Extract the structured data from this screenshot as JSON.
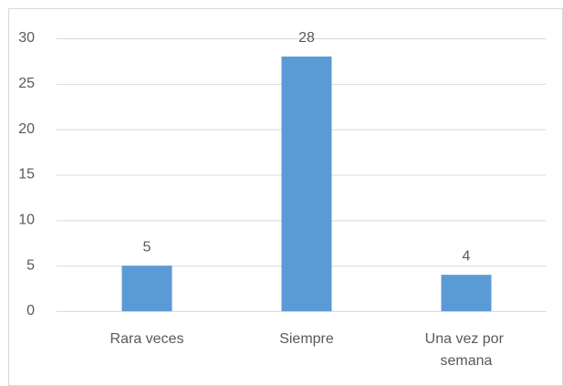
{
  "chart_data": {
    "type": "bar",
    "categories": [
      "Rara veces",
      "Siempre",
      "Una vez por semana"
    ],
    "values": [
      5,
      28,
      4
    ],
    "color": "#5b9bd5",
    "ylim": [
      0,
      30
    ],
    "yticks": [
      0,
      5,
      10,
      15,
      20,
      25,
      30
    ],
    "grid": true
  }
}
